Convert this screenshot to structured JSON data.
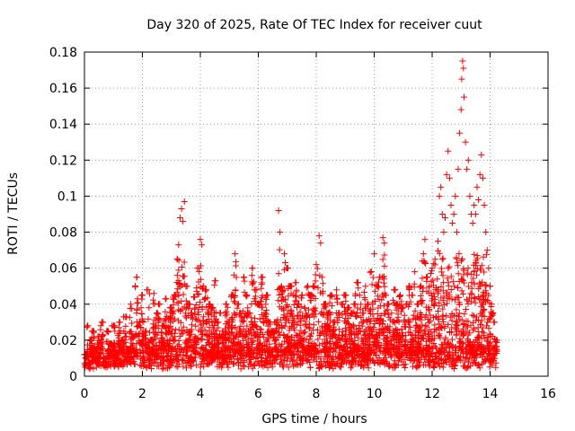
{
  "chart_data": {
    "type": "scatter",
    "title": "Day 320 of 2025, Rate Of TEC Index for receiver cuut",
    "xlabel": "GPS time / hours",
    "ylabel": "ROTI / TECUs",
    "xlim": [
      0,
      16
    ],
    "ylim": [
      0,
      0.18
    ],
    "xticks": [
      "0",
      "2",
      "4",
      "6",
      "8",
      "10",
      "12",
      "14",
      "16"
    ],
    "yticks": [
      "0",
      "0.02",
      "0.04",
      "0.06",
      "0.08",
      "0.1",
      "0.12",
      "0.14",
      "0.16",
      "0.18"
    ],
    "grid": true,
    "marker": "+",
    "color": "#ff0000",
    "series": [
      {
        "name": "ROTI",
        "envelope_note": "dense scatter; representative points per time bin",
        "x_range": [
          0,
          14.25
        ],
        "points": [
          [
            0.05,
            0.012
          ],
          [
            0.1,
            0.028
          ],
          [
            0.15,
            0.008
          ],
          [
            0.2,
            0.02
          ],
          [
            0.3,
            0.025
          ],
          [
            0.4,
            0.015
          ],
          [
            0.5,
            0.022
          ],
          [
            0.6,
            0.03
          ],
          [
            0.7,
            0.01
          ],
          [
            0.8,
            0.025
          ],
          [
            0.9,
            0.018
          ],
          [
            1.0,
            0.028
          ],
          [
            1.1,
            0.012
          ],
          [
            1.2,
            0.03
          ],
          [
            1.3,
            0.02
          ],
          [
            1.4,
            0.033
          ],
          [
            1.5,
            0.015
          ],
          [
            1.6,
            0.04
          ],
          [
            1.7,
            0.022
          ],
          [
            1.8,
            0.055
          ],
          [
            1.9,
            0.03
          ],
          [
            2.0,
            0.045
          ],
          [
            2.1,
            0.025
          ],
          [
            2.2,
            0.048
          ],
          [
            2.3,
            0.02
          ],
          [
            2.4,
            0.046
          ],
          [
            2.5,
            0.035
          ],
          [
            2.6,
            0.04
          ],
          [
            2.7,
            0.028
          ],
          [
            2.8,
            0.043
          ],
          [
            2.9,
            0.032
          ],
          [
            3.0,
            0.038
          ],
          [
            3.1,
            0.045
          ],
          [
            3.2,
            0.065
          ],
          [
            3.25,
            0.073
          ],
          [
            3.3,
            0.088
          ],
          [
            3.35,
            0.093
          ],
          [
            3.4,
            0.086
          ],
          [
            3.45,
            0.097
          ],
          [
            3.5,
            0.05
          ],
          [
            3.6,
            0.04
          ],
          [
            3.7,
            0.035
          ],
          [
            3.8,
            0.044
          ],
          [
            3.9,
            0.06
          ],
          [
            4.0,
            0.076
          ],
          [
            4.05,
            0.073
          ],
          [
            4.1,
            0.05
          ],
          [
            4.2,
            0.048
          ],
          [
            4.3,
            0.04
          ],
          [
            4.4,
            0.038
          ],
          [
            4.5,
            0.053
          ],
          [
            4.6,
            0.03
          ],
          [
            4.7,
            0.035
          ],
          [
            4.8,
            0.025
          ],
          [
            4.9,
            0.04
          ],
          [
            5.0,
            0.03
          ],
          [
            5.1,
            0.045
          ],
          [
            5.2,
            0.068
          ],
          [
            5.3,
            0.04
          ],
          [
            5.4,
            0.035
          ],
          [
            5.5,
            0.055
          ],
          [
            5.6,
            0.045
          ],
          [
            5.7,
            0.035
          ],
          [
            5.8,
            0.06
          ],
          [
            5.9,
            0.048
          ],
          [
            6.0,
            0.04
          ],
          [
            6.1,
            0.055
          ],
          [
            6.2,
            0.035
          ],
          [
            6.3,
            0.045
          ],
          [
            6.4,
            0.03
          ],
          [
            6.5,
            0.025
          ],
          [
            6.6,
            0.03
          ],
          [
            6.7,
            0.092
          ],
          [
            6.75,
            0.08
          ],
          [
            6.8,
            0.05
          ],
          [
            6.9,
            0.068
          ],
          [
            7.0,
            0.06
          ],
          [
            7.1,
            0.05
          ],
          [
            7.2,
            0.045
          ],
          [
            7.3,
            0.052
          ],
          [
            7.4,
            0.04
          ],
          [
            7.5,
            0.045
          ],
          [
            7.6,
            0.038
          ],
          [
            7.7,
            0.05
          ],
          [
            7.8,
            0.045
          ],
          [
            7.9,
            0.05
          ],
          [
            8.0,
            0.062
          ],
          [
            8.1,
            0.078
          ],
          [
            8.15,
            0.074
          ],
          [
            8.2,
            0.055
          ],
          [
            8.3,
            0.04
          ],
          [
            8.4,
            0.035
          ],
          [
            8.5,
            0.045
          ],
          [
            8.6,
            0.03
          ],
          [
            8.7,
            0.048
          ],
          [
            8.8,
            0.035
          ],
          [
            8.9,
            0.04
          ],
          [
            9.0,
            0.045
          ],
          [
            9.1,
            0.038
          ],
          [
            9.2,
            0.035
          ],
          [
            9.3,
            0.04
          ],
          [
            9.4,
            0.052
          ],
          [
            9.5,
            0.045
          ],
          [
            9.6,
            0.035
          ],
          [
            9.7,
            0.05
          ],
          [
            9.8,
            0.04
          ],
          [
            9.9,
            0.058
          ],
          [
            10.0,
            0.068
          ],
          [
            10.1,
            0.05
          ],
          [
            10.2,
            0.055
          ],
          [
            10.3,
            0.077
          ],
          [
            10.35,
            0.074
          ],
          [
            10.4,
            0.045
          ],
          [
            10.5,
            0.04
          ],
          [
            10.6,
            0.035
          ],
          [
            10.7,
            0.048
          ],
          [
            10.8,
            0.04
          ],
          [
            10.9,
            0.045
          ],
          [
            11.0,
            0.038
          ],
          [
            11.1,
            0.04
          ],
          [
            11.2,
            0.05
          ],
          [
            11.3,
            0.045
          ],
          [
            11.4,
            0.058
          ],
          [
            11.5,
            0.04
          ],
          [
            11.6,
            0.05
          ],
          [
            11.7,
            0.068
          ],
          [
            11.75,
            0.076
          ],
          [
            11.8,
            0.055
          ],
          [
            11.9,
            0.05
          ],
          [
            12.0,
            0.06
          ],
          [
            12.1,
            0.065
          ],
          [
            12.2,
            0.075
          ],
          [
            12.25,
            0.1
          ],
          [
            12.3,
            0.105
          ],
          [
            12.35,
            0.09
          ],
          [
            12.4,
            0.08
          ],
          [
            12.45,
            0.088
          ],
          [
            12.5,
            0.112
          ],
          [
            12.55,
            0.125
          ],
          [
            12.6,
            0.11
          ],
          [
            12.65,
            0.095
          ],
          [
            12.7,
            0.085
          ],
          [
            12.75,
            0.09
          ],
          [
            12.8,
            0.1
          ],
          [
            12.85,
            0.08
          ],
          [
            12.9,
            0.115
          ],
          [
            12.95,
            0.135
          ],
          [
            13.0,
            0.148
          ],
          [
            13.02,
            0.165
          ],
          [
            13.05,
            0.175
          ],
          [
            13.08,
            0.171
          ],
          [
            13.1,
            0.155
          ],
          [
            13.15,
            0.13
          ],
          [
            13.2,
            0.115
          ],
          [
            13.25,
            0.12
          ],
          [
            13.3,
            0.1
          ],
          [
            13.35,
            0.09
          ],
          [
            13.4,
            0.085
          ],
          [
            13.45,
            0.095
          ],
          [
            13.5,
            0.09
          ],
          [
            13.55,
            0.105
          ],
          [
            13.6,
            0.098
          ],
          [
            13.65,
            0.112
          ],
          [
            13.7,
            0.123
          ],
          [
            13.75,
            0.11
          ],
          [
            13.8,
            0.095
          ],
          [
            13.85,
            0.08
          ],
          [
            13.9,
            0.07
          ],
          [
            13.95,
            0.06
          ],
          [
            14.0,
            0.05
          ],
          [
            14.05,
            0.04
          ],
          [
            14.1,
            0.035
          ],
          [
            14.15,
            0.03
          ],
          [
            14.2,
            0.02
          ]
        ]
      }
    ]
  }
}
